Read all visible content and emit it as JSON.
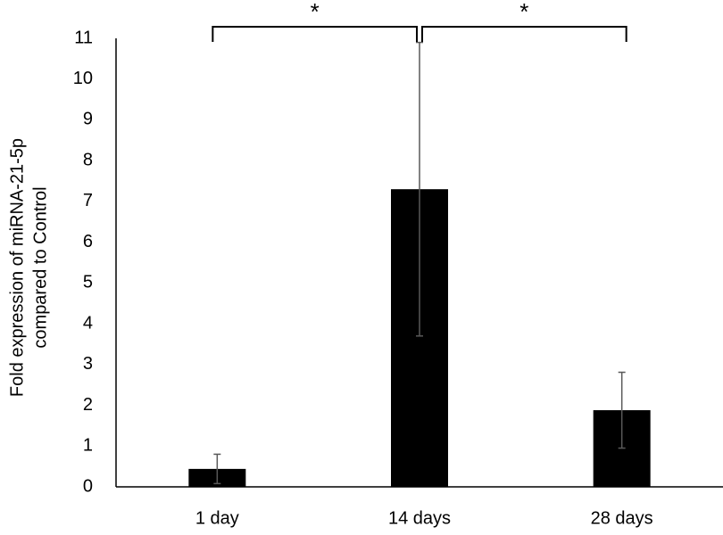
{
  "chart_data": {
    "type": "bar",
    "y_label": [
      "Fold expression of miRNA-21-5p",
      "compared to Control"
    ],
    "categories": [
      "1 day",
      "14 days",
      "28 days"
    ],
    "values": [
      0.44,
      7.3,
      1.88
    ],
    "error": [
      0.36,
      3.6,
      0.93
    ],
    "color": "#000000",
    "error_color": "#595959",
    "ylim": [
      0,
      11
    ],
    "yticks": [
      0,
      1,
      2,
      3,
      4,
      5,
      6,
      7,
      8,
      9,
      10,
      11
    ],
    "grid": false,
    "comparisons": [
      {
        "label": "*",
        "pair": [
          0,
          1
        ]
      },
      {
        "label": "*",
        "pair": [
          1,
          2
        ]
      }
    ]
  }
}
